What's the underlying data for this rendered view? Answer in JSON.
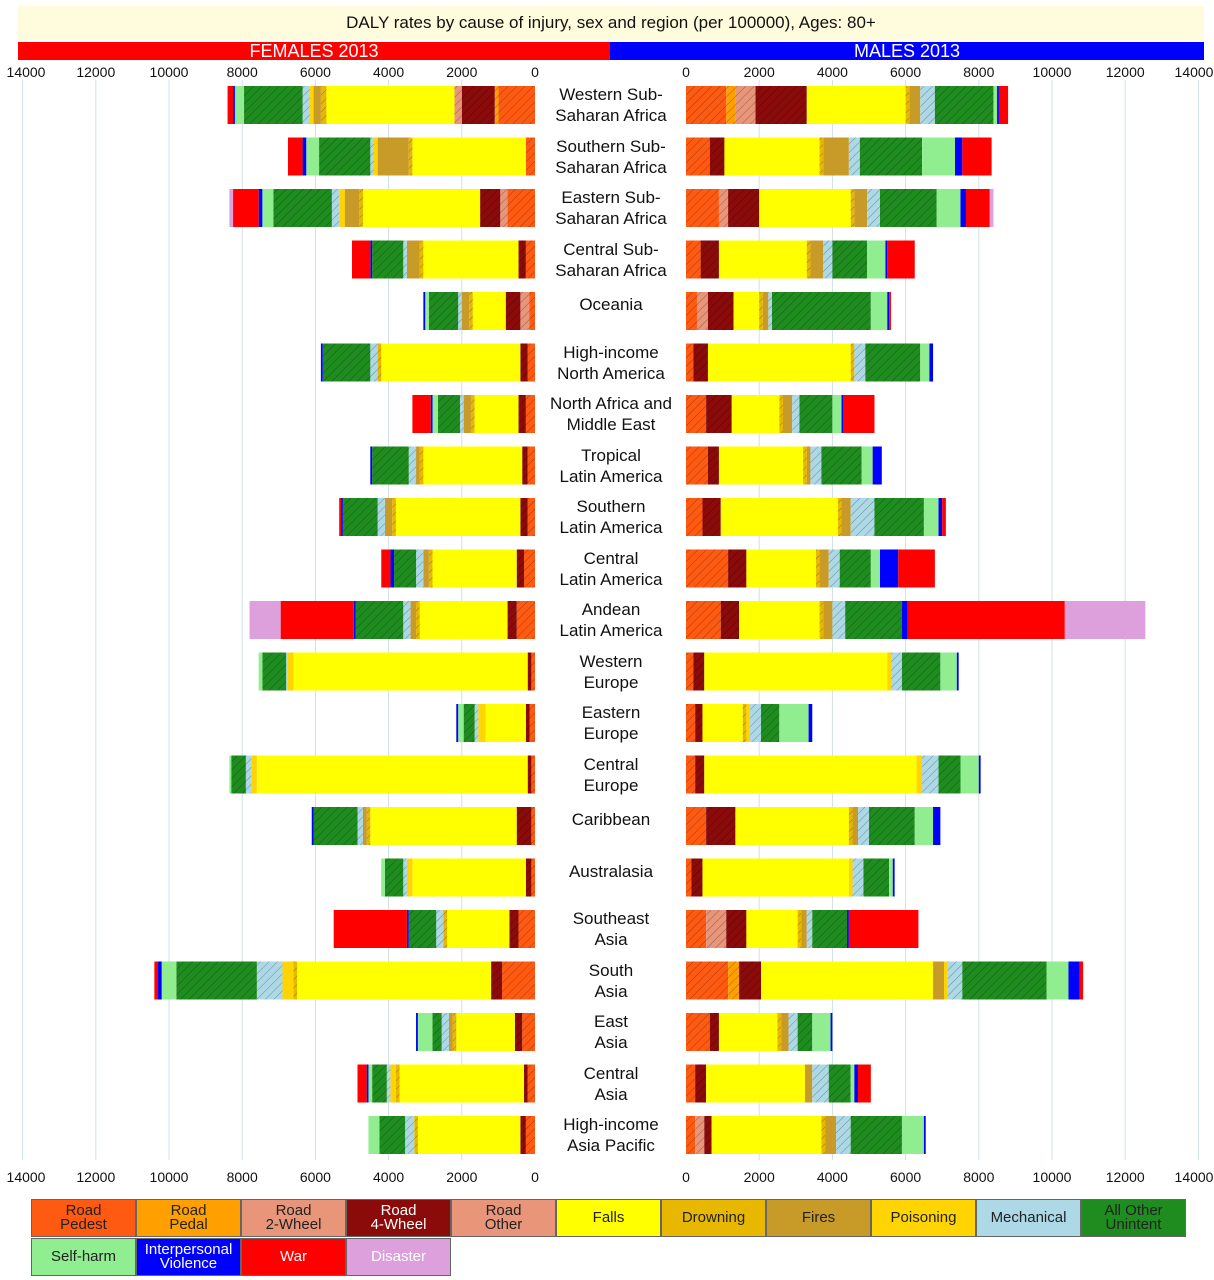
{
  "chart_data": {
    "type": "bar",
    "title": "DALY rates by cause of injury, sex and region (per 100000), Ages: 80+",
    "panel_labels": {
      "female": "FEMALES 2013",
      "male": "MALES 2013"
    },
    "xlim": [
      0,
      14000
    ],
    "xticks": [
      0,
      2000,
      4000,
      6000,
      8000,
      10000,
      12000,
      14000
    ],
    "tick_labels": [
      "0",
      "2000",
      "4000",
      "6000",
      "8000",
      "10000",
      "12000",
      "14000"
    ],
    "grid": true,
    "legend_placement": "bottom",
    "causes": [
      "Road Pedest",
      "Road Pedal",
      "Road 2-Wheel",
      "Road 4-Wheel",
      "Road Other",
      "Falls",
      "Drowning",
      "Fires",
      "Poisoning",
      "Mechanical",
      "All Other Unintent",
      "Self-harm",
      "Interpersonal Violence",
      "War",
      "Disaster"
    ],
    "colors": [
      "#ff5a12",
      "#ffa000",
      "#e8957a",
      "#8b0a0a",
      "#e8957a",
      "#ffff00",
      "#e8b800",
      "#c89a28",
      "#ffd400",
      "#add8e6",
      "#1e8c1e",
      "#90ee90",
      "#0000ff",
      "#ff0000",
      "#dda0dd"
    ],
    "regions": [
      {
        "name": [
          "Western Sub-",
          "Saharan Africa"
        ],
        "female": [
          1000,
          100,
          0,
          900,
          200,
          3500,
          150,
          200,
          100,
          200,
          1600,
          250,
          50,
          150,
          0
        ],
        "male": [
          1100,
          250,
          550,
          1400,
          0,
          2700,
          100,
          300,
          0,
          400,
          1600,
          100,
          50,
          250,
          0
        ]
      },
      {
        "name": [
          "Southern Sub-",
          "Saharan Africa"
        ],
        "female": [
          250,
          0,
          0,
          0,
          0,
          3100,
          100,
          850,
          100,
          100,
          1400,
          350,
          100,
          400,
          0
        ],
        "male": [
          650,
          0,
          0,
          400,
          0,
          2600,
          100,
          700,
          0,
          300,
          1700,
          900,
          200,
          800,
          0
        ]
      },
      {
        "name": [
          "Eastern Sub-",
          "Saharan Africa"
        ],
        "female": [
          750,
          0,
          200,
          550,
          0,
          3200,
          100,
          400,
          150,
          200,
          1600,
          300,
          100,
          700,
          100
        ],
        "male": [
          900,
          0,
          250,
          850,
          0,
          2500,
          100,
          350,
          0,
          350,
          1550,
          650,
          150,
          650,
          100
        ]
      },
      {
        "name": [
          "Central Sub-",
          "Saharan Africa"
        ],
        "female": [
          250,
          0,
          0,
          200,
          0,
          2600,
          100,
          350,
          0,
          100,
          850,
          0,
          50,
          500,
          0
        ],
        "male": [
          400,
          0,
          0,
          500,
          0,
          2400,
          100,
          350,
          0,
          250,
          950,
          500,
          50,
          750,
          0
        ]
      },
      {
        "name": [
          "Oceania"
        ],
        "female": [
          150,
          0,
          250,
          400,
          0,
          900,
          100,
          200,
          0,
          100,
          800,
          100,
          50,
          0,
          0
        ],
        "male": [
          300,
          0,
          300,
          700,
          0,
          700,
          100,
          150,
          0,
          100,
          2700,
          450,
          50,
          50,
          0
        ]
      },
      {
        "name": [
          "High-income",
          "North America"
        ],
        "female": [
          200,
          0,
          0,
          200,
          0,
          3800,
          100,
          0,
          0,
          200,
          1300,
          0,
          50,
          0,
          0
        ],
        "male": [
          200,
          0,
          0,
          400,
          0,
          3900,
          100,
          0,
          0,
          300,
          1500,
          250,
          100,
          0,
          0
        ]
      },
      {
        "name": [
          "North Africa and",
          "Middle East"
        ],
        "female": [
          250,
          0,
          0,
          200,
          0,
          1200,
          100,
          200,
          0,
          100,
          600,
          150,
          50,
          500,
          0
        ],
        "male": [
          550,
          0,
          0,
          700,
          0,
          1300,
          100,
          250,
          0,
          200,
          900,
          250,
          50,
          850,
          0
        ]
      },
      {
        "name": [
          "Tropical",
          "Latin America"
        ],
        "female": [
          200,
          0,
          0,
          150,
          0,
          2700,
          100,
          100,
          0,
          200,
          1000,
          0,
          50,
          0,
          0
        ],
        "male": [
          600,
          0,
          0,
          300,
          0,
          2300,
          100,
          100,
          0,
          300,
          1100,
          300,
          250,
          0,
          0
        ]
      },
      {
        "name": [
          "Southern",
          "Latin America"
        ],
        "female": [
          200,
          0,
          0,
          200,
          0,
          3400,
          100,
          200,
          0,
          200,
          950,
          0,
          50,
          50,
          0
        ],
        "male": [
          450,
          0,
          0,
          500,
          0,
          3200,
          100,
          250,
          0,
          650,
          1350,
          400,
          100,
          100,
          0
        ]
      },
      {
        "name": [
          "Central",
          "Latin America"
        ],
        "female": [
          300,
          0,
          0,
          200,
          0,
          2300,
          100,
          150,
          0,
          200,
          600,
          0,
          100,
          250,
          0
        ],
        "male": [
          1150,
          0,
          0,
          500,
          0,
          1900,
          100,
          250,
          0,
          300,
          850,
          250,
          500,
          1000,
          0
        ]
      },
      {
        "name": [
          "Andean",
          "Latin America"
        ],
        "female": [
          500,
          0,
          0,
          250,
          0,
          2400,
          100,
          150,
          0,
          200,
          1300,
          0,
          50,
          2000,
          850
        ],
        "male": [
          950,
          0,
          0,
          500,
          0,
          2200,
          100,
          250,
          0,
          350,
          1550,
          0,
          150,
          4300,
          2200
        ]
      },
      {
        "name": [
          "Western",
          "Europe"
        ],
        "female": [
          100,
          0,
          0,
          100,
          0,
          6400,
          0,
          0,
          150,
          50,
          650,
          100,
          0,
          0,
          0
        ],
        "male": [
          200,
          0,
          0,
          300,
          0,
          5000,
          0,
          0,
          100,
          300,
          1050,
          450,
          50,
          0,
          0
        ]
      },
      {
        "name": [
          "Eastern",
          "Europe"
        ],
        "female": [
          150,
          0,
          0,
          100,
          0,
          1100,
          0,
          0,
          200,
          100,
          300,
          150,
          50,
          0,
          0
        ],
        "male": [
          250,
          0,
          0,
          200,
          0,
          1100,
          100,
          0,
          100,
          300,
          500,
          800,
          100,
          0,
          0
        ]
      },
      {
        "name": [
          "Central",
          "Europe"
        ],
        "female": [
          100,
          0,
          0,
          100,
          0,
          7400,
          0,
          0,
          150,
          150,
          400,
          50,
          0,
          0,
          0
        ],
        "male": [
          250,
          0,
          0,
          250,
          0,
          5800,
          0,
          0,
          150,
          450,
          600,
          500,
          50,
          0,
          0
        ]
      },
      {
        "name": [
          "Caribbean"
        ],
        "female": [
          100,
          0,
          0,
          400,
          0,
          4000,
          100,
          100,
          0,
          150,
          1200,
          0,
          50,
          0,
          0
        ],
        "male": [
          550,
          0,
          0,
          800,
          0,
          3100,
          100,
          150,
          0,
          300,
          1250,
          500,
          200,
          0,
          0
        ]
      },
      {
        "name": [
          "Australasia"
        ],
        "female": [
          100,
          0,
          0,
          150,
          0,
          3100,
          0,
          0,
          150,
          100,
          500,
          100,
          0,
          0,
          0
        ],
        "male": [
          150,
          0,
          0,
          300,
          0,
          4000,
          0,
          0,
          100,
          300,
          700,
          100,
          50,
          0,
          0
        ]
      },
      {
        "name": [
          "Southeast",
          "Asia"
        ],
        "female": [
          450,
          0,
          0,
          250,
          0,
          1700,
          100,
          0,
          0,
          200,
          750,
          0,
          50,
          2000,
          0
        ],
        "male": [
          550,
          0,
          550,
          550,
          0,
          1400,
          100,
          150,
          0,
          150,
          950,
          0,
          50,
          1900,
          0
        ]
      },
      {
        "name": [
          "South",
          "Asia"
        ],
        "female": [
          900,
          0,
          0,
          300,
          0,
          5300,
          100,
          0,
          300,
          700,
          2200,
          400,
          100,
          100,
          0
        ],
        "male": [
          1150,
          300,
          0,
          600,
          0,
          4700,
          0,
          300,
          100,
          400,
          2300,
          600,
          300,
          100,
          0
        ]
      },
      {
        "name": [
          "East",
          "Asia"
        ],
        "female": [
          350,
          0,
          0,
          200,
          0,
          1600,
          100,
          100,
          0,
          200,
          250,
          400,
          50,
          0,
          0
        ],
        "male": [
          650,
          0,
          0,
          250,
          0,
          1600,
          100,
          200,
          0,
          250,
          400,
          500,
          50,
          0,
          0
        ]
      },
      {
        "name": [
          "Central",
          "Asia"
        ],
        "female": [
          200,
          0,
          0,
          100,
          0,
          3400,
          100,
          0,
          150,
          100,
          400,
          100,
          50,
          250,
          0
        ],
        "male": [
          250,
          0,
          0,
          300,
          0,
          2700,
          0,
          200,
          0,
          450,
          600,
          100,
          100,
          350,
          0
        ]
      },
      {
        "name": [
          "High-income",
          "Asia Pacific"
        ],
        "female": [
          250,
          0,
          0,
          150,
          0,
          2800,
          100,
          0,
          0,
          250,
          700,
          300,
          0,
          0,
          0
        ],
        "male": [
          250,
          0,
          250,
          200,
          0,
          3000,
          100,
          300,
          0,
          400,
          1400,
          600,
          50,
          0,
          0
        ]
      }
    ]
  }
}
